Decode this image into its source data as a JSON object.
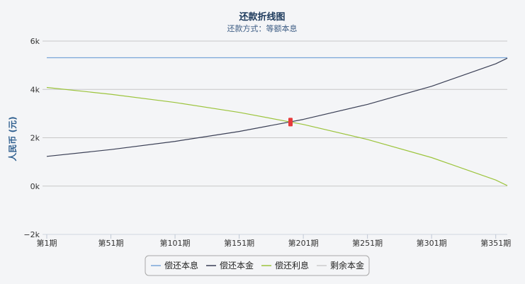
{
  "chart_data": {
    "type": "line",
    "title": "还款折线图",
    "subtitle": "还款方式：等额本息",
    "ylabel": "人民币 (元)",
    "xlabel": "",
    "ylim": [
      -2000,
      6000
    ],
    "xlim": [
      1,
      360
    ],
    "yticks": [
      {
        "value": -2000,
        "label": "−2k"
      },
      {
        "value": 0,
        "label": "0k"
      },
      {
        "value": 2000,
        "label": "2k"
      },
      {
        "value": 4000,
        "label": "4k"
      },
      {
        "value": 6000,
        "label": "6k"
      }
    ],
    "xticks": [
      {
        "value": 1,
        "label": "第1期"
      },
      {
        "value": 51,
        "label": "第51期"
      },
      {
        "value": 101,
        "label": "第101期"
      },
      {
        "value": 151,
        "label": "第151期"
      },
      {
        "value": 201,
        "label": "第201期"
      },
      {
        "value": 251,
        "label": "第251期"
      },
      {
        "value": 301,
        "label": "第301期"
      },
      {
        "value": 351,
        "label": "第351期"
      }
    ],
    "grid": true,
    "legend_position": "bottom",
    "series": [
      {
        "name": "偿还本息",
        "color": "#7aa6d8",
        "visible": true,
        "x": [
          1,
          51,
          101,
          151,
          201,
          251,
          301,
          351,
          360
        ],
        "y": [
          5310,
          5310,
          5310,
          5310,
          5310,
          5310,
          5310,
          5310,
          5310
        ]
      },
      {
        "name": "偿还本金",
        "color": "#3a3f55",
        "visible": true,
        "x": [
          1,
          51,
          101,
          151,
          201,
          251,
          301,
          351,
          360
        ],
        "y": [
          1230,
          1510,
          1850,
          2260,
          2760,
          3380,
          4130,
          5060,
          5290
        ]
      },
      {
        "name": "偿还利息",
        "color": "#9cc43c",
        "visible": true,
        "x": [
          1,
          51,
          101,
          151,
          201,
          251,
          301,
          351,
          360
        ],
        "y": [
          4080,
          3800,
          3460,
          3050,
          2550,
          1930,
          1180,
          250,
          20
        ]
      },
      {
        "name": "剩余本金",
        "color": "#cccccc",
        "visible": false,
        "x": [],
        "y": []
      }
    ],
    "marker": {
      "series": "偿还本金",
      "x": 191,
      "y": 2650,
      "color": "#e63b3b"
    }
  }
}
